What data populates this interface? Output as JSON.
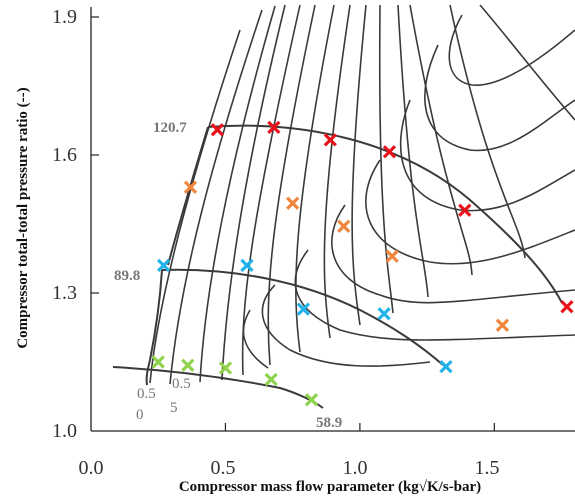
{
  "chart_data": {
    "type": "scatter",
    "xlabel": "Compressor mass flow parameter (kg√K/s-bar)",
    "ylabel": "Compressor total-total  pressure ratio (--)",
    "xlim": [
      0.0,
      1.8
    ],
    "ylim": [
      1.0,
      1.9
    ],
    "x_ticks": [
      "0.0",
      "0.5",
      "1.0",
      "1.5"
    ],
    "y_ticks": [
      "1.0",
      "1.3",
      "1.6",
      "1.9"
    ],
    "grid": false,
    "speed_line_labels": [
      "120.7",
      "89.8",
      "58.9"
    ],
    "extra_labels": [
      "0.5",
      "0.5",
      "0",
      "5"
    ],
    "colors": {
      "red": "#e8131b",
      "orange": "#f0853b",
      "blue": "#20b2e8",
      "green": "#8fd24b",
      "line": "#3a3a3a"
    },
    "series": [
      {
        "color": "#e8131b",
        "points": [
          {
            "x": 0.47,
            "y": 1.655
          },
          {
            "x": 0.68,
            "y": 1.66
          },
          {
            "x": 0.89,
            "y": 1.633
          },
          {
            "x": 1.11,
            "y": 1.607
          },
          {
            "x": 1.39,
            "y": 1.48
          },
          {
            "x": 1.77,
            "y": 1.27
          }
        ]
      },
      {
        "color": "#f0853b",
        "points": [
          {
            "x": 0.37,
            "y": 1.53
          },
          {
            "x": 0.75,
            "y": 1.495
          },
          {
            "x": 0.94,
            "y": 1.445
          },
          {
            "x": 1.12,
            "y": 1.38
          },
          {
            "x": 1.53,
            "y": 1.23
          }
        ]
      },
      {
        "color": "#20b2e8",
        "points": [
          {
            "x": 0.27,
            "y": 1.36
          },
          {
            "x": 0.58,
            "y": 1.36
          },
          {
            "x": 0.79,
            "y": 1.265
          },
          {
            "x": 1.09,
            "y": 1.255
          },
          {
            "x": 1.32,
            "y": 1.14
          }
        ]
      },
      {
        "color": "#8fd24b",
        "points": [
          {
            "x": 0.25,
            "y": 1.15
          },
          {
            "x": 0.36,
            "y": 1.143
          },
          {
            "x": 0.5,
            "y": 1.137
          },
          {
            "x": 0.67,
            "y": 1.112
          },
          {
            "x": 0.82,
            "y": 1.068
          }
        ]
      }
    ]
  }
}
